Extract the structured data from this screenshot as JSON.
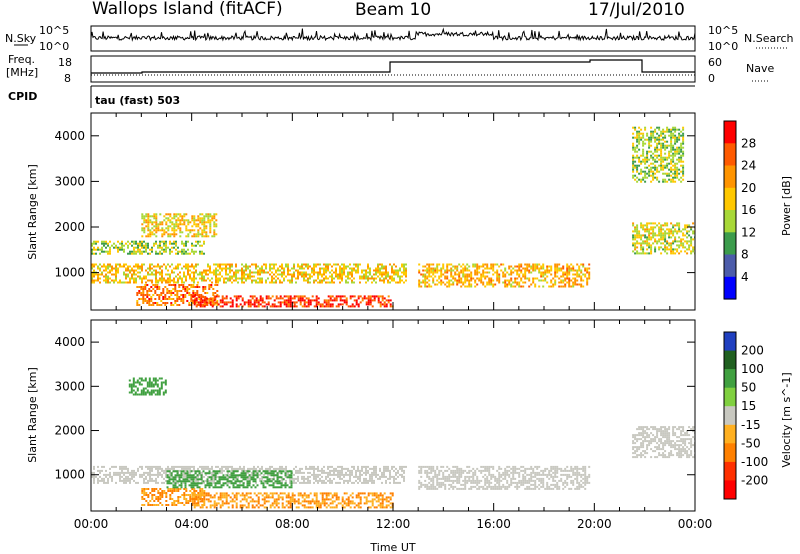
{
  "header": {
    "station": "Wallops Island (fitACF)",
    "beam": "Beam 10",
    "date": "17/Jul/2010"
  },
  "strip_labels": {
    "nsky": "N.Sky",
    "nsearch": "N.Search",
    "freq_line1": "Freq.",
    "freq_line2": "[MHz]",
    "nave": "Nave",
    "cpid": "CPID",
    "cpid_value": "tau (fast) 503"
  },
  "strip_ticks": {
    "noise_left": [
      "10^5",
      "10^0"
    ],
    "noise_right": [
      "10^5",
      "10^0"
    ],
    "freq_left": [
      "18",
      "8"
    ],
    "nave_right": [
      "60",
      "0"
    ]
  },
  "colorbar_power": {
    "label": "Power [dB]",
    "ticks": [
      "28",
      "24",
      "20",
      "16",
      "12",
      "8",
      "4"
    ],
    "colors": [
      "#ff0000",
      "#ff5a00",
      "#ff9400",
      "#ffc800",
      "#a8d838",
      "#3c9c4c",
      "#4c5caa",
      "#0000ff"
    ]
  },
  "colorbar_velocity": {
    "label": "Velocity [m s^-1]",
    "ticks": [
      "200",
      "100",
      "50",
      "15",
      "-15",
      "-50",
      "-100",
      "-200"
    ],
    "colors": [
      "#2040c0",
      "#206020",
      "#40a040",
      "#80d040",
      "#c8c8c0",
      "#ffb020",
      "#ff8000",
      "#ff3000",
      "#ff0000"
    ]
  },
  "chart_data": [
    {
      "type": "heatmap",
      "panel": "power",
      "ylabel": "Slant Range [km]",
      "xlabel": "",
      "ylim": [
        180,
        4500
      ],
      "yticks": [
        1000,
        2000,
        3000,
        4000
      ],
      "xlim_hours": [
        0,
        24
      ],
      "scale_units": "dB",
      "regions": [
        {
          "t": [
            0,
            4.5
          ],
          "r": [
            1400,
            1700
          ],
          "level": 14
        },
        {
          "t": [
            0,
            12.5
          ],
          "r": [
            800,
            1200
          ],
          "level": 18
        },
        {
          "t": [
            1.8,
            5
          ],
          "r": [
            300,
            750
          ],
          "level": 24
        },
        {
          "t": [
            4,
            12
          ],
          "r": [
            250,
            500
          ],
          "level": 28
        },
        {
          "t": [
            2,
            5
          ],
          "r": [
            1800,
            2300
          ],
          "level": 18
        },
        {
          "t": [
            13,
            19.8
          ],
          "r": [
            700,
            1200
          ],
          "level": 20
        },
        {
          "t": [
            21.5,
            24
          ],
          "r": [
            1400,
            2100
          ],
          "level": 16
        },
        {
          "t": [
            21.5,
            23.5
          ],
          "r": [
            3000,
            4200
          ],
          "level": 14
        }
      ]
    },
    {
      "type": "heatmap",
      "panel": "velocity",
      "ylabel": "Slant Range [km]",
      "xlabel": "Time UT",
      "ylim": [
        180,
        4500
      ],
      "yticks": [
        1000,
        2000,
        3000,
        4000
      ],
      "xlim_hours": [
        0,
        24
      ],
      "xticks": [
        "00:00",
        "04:00",
        "08:00",
        "12:00",
        "16:00",
        "20:00",
        "00:00"
      ],
      "scale_units": "m s^-1",
      "regions": [
        {
          "t": [
            0,
            12.5
          ],
          "r": [
            800,
            1200
          ],
          "level": 0
        },
        {
          "t": [
            4,
            12
          ],
          "r": [
            250,
            600
          ],
          "level": -50
        },
        {
          "t": [
            2,
            4.5
          ],
          "r": [
            300,
            700
          ],
          "level": -50
        },
        {
          "t": [
            3,
            8
          ],
          "r": [
            700,
            1100
          ],
          "level": 50
        },
        {
          "t": [
            13,
            19.8
          ],
          "r": [
            700,
            1200
          ],
          "level": 0
        },
        {
          "t": [
            21.5,
            24
          ],
          "r": [
            1400,
            2100
          ],
          "level": 0
        },
        {
          "t": [
            1.5,
            3
          ],
          "r": [
            2800,
            3200
          ],
          "level": 50
        }
      ]
    }
  ]
}
